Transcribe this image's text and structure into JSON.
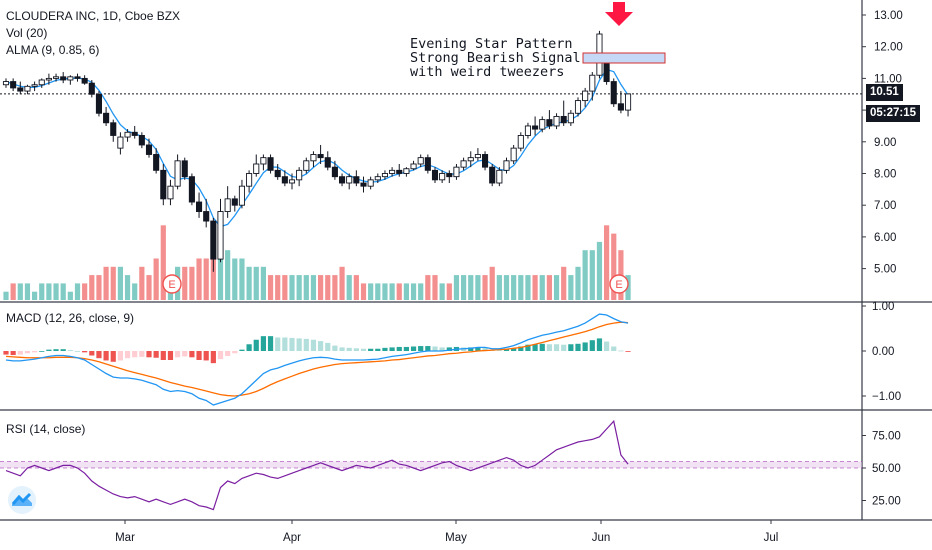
{
  "chart_data": {
    "type": "candlestick",
    "title": "CLOUDERA INC, 1D, Cboe BZX",
    "indicators": [
      "Vol (20)",
      "ALMA (9, 0.85, 6)"
    ],
    "last_price": "10.51",
    "countdown": "05:27:15",
    "price_axis_ticks": [
      "13.00",
      "12.00",
      "11.00",
      "10.00",
      "9.00",
      "8.00",
      "7.00",
      "6.00",
      "5.00"
    ],
    "time_axis_ticks": [
      "Mar",
      "Apr",
      "May",
      "Jun",
      "Jul"
    ],
    "earnings_marker": "E",
    "annotation": [
      "Evening Star Pattern",
      "Strong Bearish Signal",
      "with weird tweezers"
    ],
    "candles": [
      [
        10.8,
        11.0,
        10.7,
        10.9
      ],
      [
        10.9,
        11.0,
        10.6,
        10.7
      ],
      [
        10.7,
        10.9,
        10.5,
        10.6
      ],
      [
        10.6,
        10.8,
        10.5,
        10.75
      ],
      [
        10.75,
        10.9,
        10.6,
        10.8
      ],
      [
        10.8,
        11.0,
        10.7,
        10.95
      ],
      [
        10.95,
        11.15,
        10.8,
        11.0
      ],
      [
        11.0,
        11.15,
        10.9,
        11.05
      ],
      [
        11.05,
        11.2,
        10.85,
        10.95
      ],
      [
        10.95,
        11.1,
        10.8,
        11.05
      ],
      [
        11.05,
        11.15,
        10.9,
        11.0
      ],
      [
        11.0,
        11.1,
        10.8,
        10.85
      ],
      [
        10.85,
        10.95,
        10.4,
        10.5
      ],
      [
        10.5,
        10.6,
        9.8,
        9.9
      ],
      [
        9.9,
        10.1,
        9.5,
        9.6
      ],
      [
        9.6,
        9.7,
        9.0,
        9.2
      ],
      [
        8.8,
        9.3,
        8.6,
        9.15
      ],
      [
        9.15,
        9.4,
        9.0,
        9.3
      ],
      [
        9.3,
        9.5,
        9.1,
        9.2
      ],
      [
        9.2,
        9.3,
        8.8,
        8.9
      ],
      [
        8.9,
        9.1,
        8.5,
        8.6
      ],
      [
        8.6,
        8.8,
        8.0,
        8.1
      ],
      [
        8.1,
        8.3,
        7.0,
        7.2
      ],
      [
        7.2,
        7.8,
        7.0,
        7.6
      ],
      [
        7.6,
        8.6,
        7.5,
        8.4
      ],
      [
        8.4,
        8.5,
        7.8,
        7.9
      ],
      [
        7.9,
        8.0,
        7.0,
        7.1
      ],
      [
        7.1,
        7.4,
        6.6,
        6.8
      ],
      [
        6.8,
        7.2,
        6.3,
        6.5
      ],
      [
        6.5,
        6.6,
        4.9,
        5.3
      ],
      [
        5.3,
        7.2,
        5.2,
        6.8
      ],
      [
        6.8,
        7.6,
        6.6,
        7.2
      ],
      [
        7.2,
        7.3,
        6.8,
        7.0
      ],
      [
        7.0,
        7.8,
        6.9,
        7.6
      ],
      [
        7.6,
        8.1,
        7.4,
        8.0
      ],
      [
        8.0,
        8.6,
        7.9,
        8.3
      ],
      [
        8.3,
        8.6,
        8.1,
        8.5
      ],
      [
        8.5,
        8.6,
        8.0,
        8.1
      ],
      [
        8.1,
        8.3,
        7.8,
        7.9
      ],
      [
        7.9,
        8.1,
        7.6,
        7.7
      ],
      [
        7.7,
        8.0,
        7.5,
        7.8
      ],
      [
        7.8,
        8.2,
        7.6,
        8.1
      ],
      [
        8.1,
        8.5,
        8.0,
        8.4
      ],
      [
        8.4,
        8.7,
        8.2,
        8.6
      ],
      [
        8.6,
        8.9,
        8.3,
        8.5
      ],
      [
        8.5,
        8.7,
        8.1,
        8.2
      ],
      [
        8.2,
        8.4,
        7.8,
        7.9
      ],
      [
        7.9,
        8.0,
        7.6,
        7.7
      ],
      [
        7.7,
        8.0,
        7.5,
        7.9
      ],
      [
        7.9,
        8.1,
        7.6,
        7.7
      ],
      [
        7.7,
        7.9,
        7.4,
        7.6
      ],
      [
        7.6,
        7.9,
        7.5,
        7.8
      ],
      [
        7.8,
        8.0,
        7.7,
        7.9
      ],
      [
        7.9,
        8.1,
        7.8,
        8.0
      ],
      [
        8.0,
        8.2,
        7.9,
        8.1
      ],
      [
        8.1,
        8.3,
        7.9,
        8.0
      ],
      [
        8.0,
        8.2,
        7.9,
        8.15
      ],
      [
        8.15,
        8.4,
        8.1,
        8.3
      ],
      [
        8.3,
        8.6,
        8.2,
        8.5
      ],
      [
        8.5,
        8.6,
        8.0,
        8.1
      ],
      [
        8.1,
        8.2,
        7.7,
        7.8
      ],
      [
        7.8,
        8.1,
        7.7,
        8.0
      ],
      [
        8.0,
        8.1,
        7.7,
        7.9
      ],
      [
        7.9,
        8.3,
        7.8,
        8.2
      ],
      [
        8.2,
        8.5,
        8.1,
        8.4
      ],
      [
        8.4,
        8.7,
        8.2,
        8.5
      ],
      [
        8.5,
        8.8,
        8.4,
        8.6
      ],
      [
        8.6,
        8.7,
        8.1,
        8.2
      ],
      [
        8.2,
        8.3,
        7.6,
        7.7
      ],
      [
        7.7,
        8.2,
        7.6,
        8.1
      ],
      [
        8.1,
        8.5,
        8.0,
        8.4
      ],
      [
        8.4,
        8.9,
        8.3,
        8.8
      ],
      [
        8.8,
        9.3,
        8.7,
        9.2
      ],
      [
        9.2,
        9.6,
        9.1,
        9.5
      ],
      [
        9.5,
        9.8,
        9.2,
        9.4
      ],
      [
        9.4,
        9.8,
        9.3,
        9.7
      ],
      [
        9.7,
        10.0,
        9.4,
        9.5
      ],
      [
        9.5,
        9.9,
        9.4,
        9.8
      ],
      [
        9.8,
        10.3,
        9.5,
        9.6
      ],
      [
        9.6,
        10.0,
        9.5,
        9.9
      ],
      [
        9.9,
        10.4,
        9.8,
        10.3
      ],
      [
        10.3,
        10.7,
        10.1,
        10.6
      ],
      [
        10.6,
        11.2,
        10.3,
        11.1
      ],
      [
        11.1,
        12.5,
        11.0,
        12.4
      ],
      [
        11.5,
        11.6,
        10.8,
        10.9
      ],
      [
        10.9,
        11.0,
        10.1,
        10.2
      ],
      [
        10.2,
        10.6,
        9.9,
        10.0
      ],
      [
        10.0,
        10.5,
        9.8,
        10.51
      ]
    ],
    "volumes": [
      [
        1,
        1
      ],
      [
        2,
        0
      ],
      [
        2,
        1
      ],
      [
        2,
        1
      ],
      [
        1,
        1
      ],
      [
        2,
        1
      ],
      [
        2,
        1
      ],
      [
        2,
        1
      ],
      [
        2,
        1
      ],
      [
        1,
        1
      ],
      [
        2,
        1
      ],
      [
        2,
        0
      ],
      [
        3,
        0
      ],
      [
        3,
        0
      ],
      [
        4,
        0
      ],
      [
        4,
        0
      ],
      [
        4,
        1
      ],
      [
        3,
        1
      ],
      [
        2,
        1
      ],
      [
        4,
        0
      ],
      [
        3,
        0
      ],
      [
        5,
        0
      ],
      [
        9,
        0
      ],
      [
        3,
        1
      ],
      [
        4,
        1
      ],
      [
        4,
        0
      ],
      [
        4,
        0
      ],
      [
        5,
        0
      ],
      [
        5,
        0
      ],
      [
        9,
        0
      ],
      [
        7,
        1
      ],
      [
        6,
        1
      ],
      [
        5,
        1
      ],
      [
        5,
        1
      ],
      [
        4,
        1
      ],
      [
        4,
        1
      ],
      [
        4,
        1
      ],
      [
        3,
        0
      ],
      [
        3,
        0
      ],
      [
        3,
        0
      ],
      [
        3,
        1
      ],
      [
        3,
        1
      ],
      [
        3,
        1
      ],
      [
        3,
        1
      ],
      [
        3,
        0
      ],
      [
        3,
        0
      ],
      [
        3,
        0
      ],
      [
        4,
        0
      ],
      [
        3,
        1
      ],
      [
        3,
        0
      ],
      [
        2,
        0
      ],
      [
        2,
        1
      ],
      [
        2,
        1
      ],
      [
        2,
        1
      ],
      [
        2,
        1
      ],
      [
        2,
        0
      ],
      [
        2,
        1
      ],
      [
        2,
        1
      ],
      [
        2,
        1
      ],
      [
        3,
        0
      ],
      [
        3,
        0
      ],
      [
        2,
        1
      ],
      [
        2,
        0
      ],
      [
        3,
        1
      ],
      [
        3,
        1
      ],
      [
        3,
        1
      ],
      [
        3,
        1
      ],
      [
        3,
        0
      ],
      [
        4,
        0
      ],
      [
        3,
        1
      ],
      [
        3,
        1
      ],
      [
        3,
        1
      ],
      [
        3,
        1
      ],
      [
        3,
        1
      ],
      [
        3,
        0
      ],
      [
        3,
        1
      ],
      [
        3,
        0
      ],
      [
        3,
        1
      ],
      [
        4,
        0
      ],
      [
        3,
        1
      ],
      [
        4,
        1
      ],
      [
        6,
        1
      ],
      [
        6,
        1
      ],
      [
        7,
        1
      ],
      [
        9,
        0
      ],
      [
        8,
        0
      ],
      [
        6,
        0
      ],
      [
        3,
        1
      ]
    ],
    "macd_panel": {
      "label": "MACD (12, 26, close, 9)",
      "ticks": [
        "1.00",
        "0.00",
        "−1.00"
      ],
      "macd": [
        -0.2,
        -0.22,
        -0.22,
        -0.2,
        -0.18,
        -0.15,
        -0.12,
        -0.1,
        -0.1,
        -0.12,
        -0.15,
        -0.2,
        -0.3,
        -0.4,
        -0.5,
        -0.58,
        -0.6,
        -0.6,
        -0.62,
        -0.65,
        -0.7,
        -0.75,
        -0.85,
        -0.9,
        -0.88,
        -0.9,
        -0.95,
        -1.05,
        -1.1,
        -1.2,
        -1.15,
        -1.1,
        -1.05,
        -0.95,
        -0.8,
        -0.65,
        -0.5,
        -0.42,
        -0.38,
        -0.32,
        -0.27,
        -0.22,
        -0.18,
        -0.15,
        -0.14,
        -0.15,
        -0.18,
        -0.2,
        -0.2,
        -0.2,
        -0.2,
        -0.19,
        -0.18,
        -0.15,
        -0.12,
        -0.1,
        -0.08,
        -0.05,
        -0.02,
        0.0,
        0.0,
        0.0,
        0.02,
        0.04,
        0.05,
        0.06,
        0.08,
        0.08,
        0.05,
        0.05,
        0.08,
        0.12,
        0.18,
        0.25,
        0.3,
        0.35,
        0.38,
        0.42,
        0.45,
        0.5,
        0.55,
        0.62,
        0.72,
        0.82,
        0.8,
        0.72,
        0.65,
        0.62
      ],
      "signal": [
        -0.12,
        -0.13,
        -0.14,
        -0.15,
        -0.15,
        -0.15,
        -0.15,
        -0.14,
        -0.14,
        -0.14,
        -0.15,
        -0.17,
        -0.2,
        -0.24,
        -0.29,
        -0.34,
        -0.39,
        -0.44,
        -0.48,
        -0.52,
        -0.56,
        -0.6,
        -0.65,
        -0.7,
        -0.74,
        -0.78,
        -0.81,
        -0.85,
        -0.89,
        -0.93,
        -0.97,
        -0.99,
        -1.0,
        -0.98,
        -0.95,
        -0.9,
        -0.83,
        -0.75,
        -0.68,
        -0.62,
        -0.56,
        -0.5,
        -0.45,
        -0.4,
        -0.36,
        -0.33,
        -0.3,
        -0.28,
        -0.27,
        -0.26,
        -0.25,
        -0.24,
        -0.23,
        -0.22,
        -0.2,
        -0.19,
        -0.17,
        -0.15,
        -0.13,
        -0.11,
        -0.1,
        -0.08,
        -0.06,
        -0.05,
        -0.03,
        -0.02,
        0.0,
        0.01,
        0.02,
        0.03,
        0.04,
        0.06,
        0.08,
        0.11,
        0.15,
        0.19,
        0.23,
        0.27,
        0.31,
        0.35,
        0.39,
        0.43,
        0.48,
        0.54,
        0.59,
        0.62,
        0.64,
        0.63
      ]
    },
    "rsi_panel": {
      "label": "RSI (14, close)",
      "ticks": [
        "75.00",
        "50.00",
        "25.00"
      ],
      "upper": 55,
      "lower": 50,
      "rsi": [
        48,
        46,
        44,
        50,
        52,
        50,
        48,
        50,
        52,
        52,
        50,
        46,
        40,
        36,
        33,
        30,
        28,
        27,
        28,
        26,
        24,
        26,
        24,
        22,
        24,
        26,
        24,
        21,
        20,
        18,
        35,
        40,
        38,
        42,
        44,
        46,
        45,
        43,
        42,
        44,
        46,
        48,
        50,
        52,
        54,
        52,
        50,
        48,
        50,
        52,
        51,
        50,
        52,
        54,
        56,
        53,
        52,
        50,
        48,
        50,
        52,
        54,
        55,
        52,
        50,
        48,
        50,
        52,
        54,
        56,
        58,
        56,
        52,
        50,
        52,
        56,
        60,
        64,
        66,
        68,
        70,
        71,
        72,
        74,
        80,
        86,
        60,
        53
      ]
    }
  }
}
